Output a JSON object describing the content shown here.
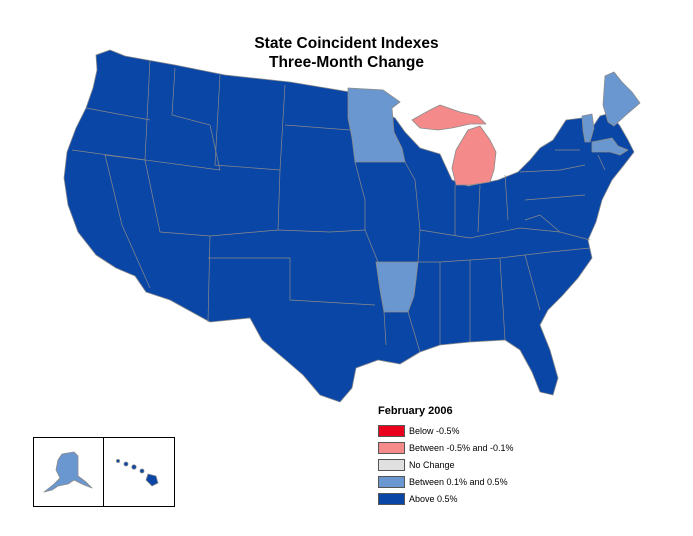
{
  "title": {
    "line1": "State Coincident Indexes",
    "line2": "Three-Month Change"
  },
  "legend": {
    "title": "February 2006",
    "items": [
      {
        "label": "Below -0.5%",
        "color": "#e8001c"
      },
      {
        "label": "Between -0.5% and -0.1%",
        "color": "#f58a8a"
      },
      {
        "label": "No Change",
        "color": "#e0e0e0"
      },
      {
        "label": "Between 0.1% and 0.5%",
        "color": "#6a97cf"
      },
      {
        "label": "Above 0.5%",
        "color": "#0a46a6"
      }
    ]
  },
  "colors": {
    "above": "#0a46a6",
    "between_pos": "#6a97cf",
    "between_neg": "#f58a8a",
    "border": "#8a8a8a"
  },
  "states_highlighted": {
    "between_0.1_and_0.5": [
      "Minnesota",
      "Arkansas",
      "Maine",
      "Vermont",
      "Massachusetts",
      "Alaska"
    ],
    "between_-0.5_and_-0.1": [
      "Michigan"
    ],
    "above_0.5": [
      "all other states"
    ]
  }
}
